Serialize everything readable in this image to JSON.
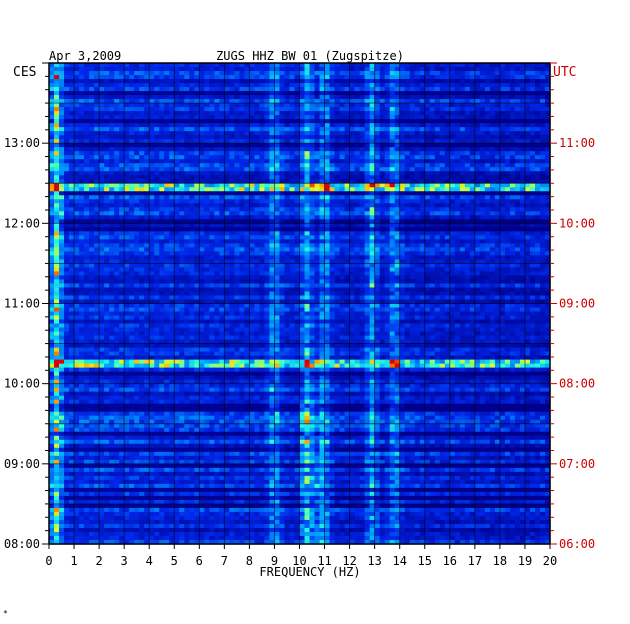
{
  "header": {
    "date": "Apr 3,2009",
    "station": "ZUGS HHZ BW 01 (Zugspitze)"
  },
  "colors": {
    "background": "#ffffff",
    "frame": "#000000",
    "left_labels": "#000000",
    "right_labels": "#cc0000",
    "colormap_low": "#00008b",
    "colormap_mid": "#00ffff",
    "colormap_high": "#ff0000"
  },
  "chart_data": {
    "type": "heatmap",
    "title": "ZUGS HHZ BW 01 (Zugspitze)",
    "date": "Apr 3,2009",
    "xlabel": "FREQUENCY (HZ)",
    "xlim": [
      0,
      20
    ],
    "x_ticks": [
      "0",
      "1",
      "2",
      "3",
      "4",
      "5",
      "6",
      "7",
      "8",
      "9",
      "10",
      "11",
      "12",
      "13",
      "14",
      "15",
      "16",
      "17",
      "18",
      "19",
      "20"
    ],
    "left_axis": {
      "label": "CES",
      "ticks": [
        "08:00",
        "09:00",
        "10:00",
        "11:00",
        "12:00",
        "13:00"
      ],
      "range_hours": [
        8.0,
        14.0
      ]
    },
    "right_axis": {
      "label": "UTC",
      "ticks": [
        "06:00",
        "07:00",
        "08:00",
        "09:00",
        "10:00",
        "11:00"
      ],
      "range_hours": [
        6.0,
        12.0
      ]
    },
    "grid": true,
    "dominant_frequency_bands_hz": [
      0.3,
      9.0,
      10.3,
      11.0,
      12.9,
      13.8
    ],
    "strong_time_bands_ces": [
      "12:27",
      "10:15"
    ],
    "footnote": "*"
  }
}
